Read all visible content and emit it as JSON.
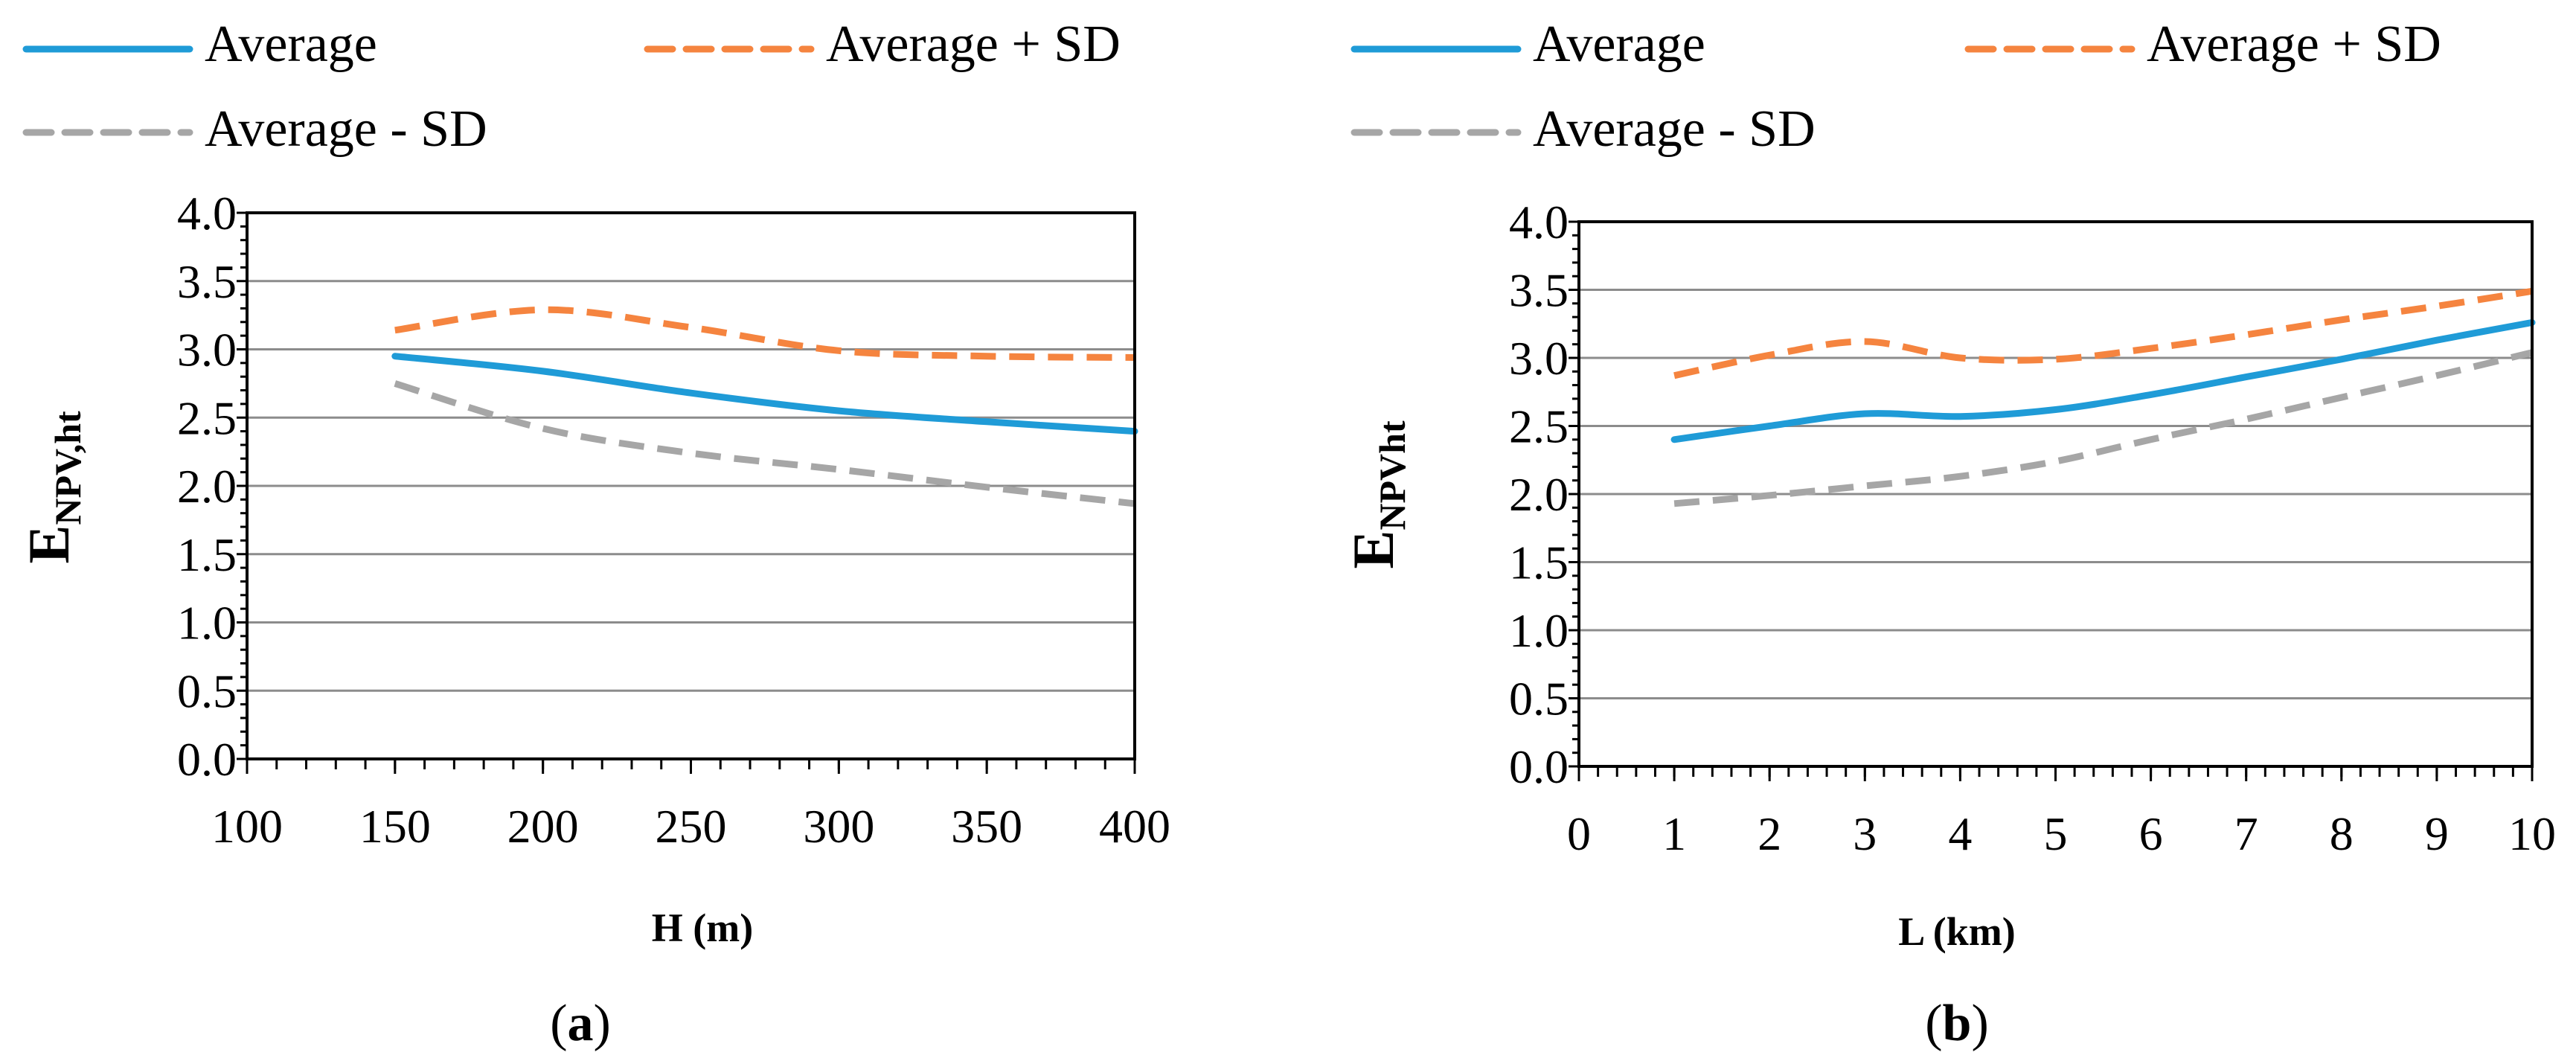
{
  "colors": {
    "average": "#1f9bd7",
    "average_plus_sd": "#f5843f",
    "average_minus_sd": "#a6a6a6",
    "grid": "#8c8c8c",
    "axis": "#000000"
  },
  "legend": {
    "average": "Average",
    "average_plus_sd": "Average  + SD",
    "average_minus_sd": "Average - SD"
  },
  "chart_data": [
    {
      "type": "line",
      "panel_label": "a",
      "xlabel": "H (m)",
      "ylabel_main": "E",
      "ylabel_sub": "NPV,ht",
      "xlim": [
        100,
        400
      ],
      "ylim": [
        0,
        4
      ],
      "xticks": [
        "100",
        "150",
        "200",
        "250",
        "300",
        "350",
        "400"
      ],
      "xtick_values": [
        100,
        150,
        200,
        250,
        300,
        350,
        400
      ],
      "yticks": [
        "0.0",
        "0.5",
        "1.0",
        "1.5",
        "2.0",
        "2.5",
        "3.0",
        "3.5",
        "4.0"
      ],
      "ytick_values": [
        0,
        0.5,
        1,
        1.5,
        2,
        2.5,
        3,
        3.5,
        4
      ],
      "x": [
        150,
        200,
        250,
        300,
        350,
        400
      ],
      "series": [
        {
          "name": "Average",
          "key": "average",
          "values": [
            2.95,
            2.84,
            2.68,
            2.55,
            2.47,
            2.4
          ]
        },
        {
          "name": "Average  + SD",
          "key": "average_plus_sd",
          "values": [
            3.14,
            3.29,
            3.16,
            2.99,
            2.95,
            2.94
          ]
        },
        {
          "name": "Average - SD",
          "key": "average_minus_sd",
          "values": [
            2.75,
            2.42,
            2.24,
            2.12,
            1.99,
            1.87
          ]
        }
      ]
    },
    {
      "type": "line",
      "panel_label": "b",
      "xlabel": "L (km)",
      "ylabel_main": "E",
      "ylabel_sub": "NPVht",
      "xlim": [
        0,
        10
      ],
      "ylim": [
        0,
        4
      ],
      "xticks": [
        "0",
        "1",
        "2",
        "3",
        "4",
        "5",
        "6",
        "7",
        "8",
        "9",
        "10"
      ],
      "xtick_values": [
        0,
        1,
        2,
        3,
        4,
        5,
        6,
        7,
        8,
        9,
        10
      ],
      "yticks": [
        "0.0",
        "0.5",
        "1.0",
        "1.5",
        "2.0",
        "2.5",
        "3.0",
        "3.5",
        "4.0"
      ],
      "ytick_values": [
        0,
        0.5,
        1,
        1.5,
        2,
        2.5,
        3,
        3.5,
        4
      ],
      "x": [
        1,
        2,
        3,
        4,
        5,
        6,
        7,
        8,
        9,
        10
      ],
      "series": [
        {
          "name": "Average",
          "key": "average",
          "values": [
            2.4,
            2.5,
            2.59,
            2.57,
            2.62,
            2.73,
            2.86,
            2.99,
            3.13,
            3.26
          ]
        },
        {
          "name": "Average  + SD",
          "key": "average_plus_sd",
          "values": [
            2.87,
            3.02,
            3.12,
            3.0,
            2.99,
            3.07,
            3.17,
            3.28,
            3.38,
            3.49
          ]
        },
        {
          "name": "Average - SD",
          "key": "average_minus_sd",
          "values": [
            1.93,
            1.99,
            2.06,
            2.13,
            2.24,
            2.4,
            2.55,
            2.71,
            2.87,
            3.04
          ]
        }
      ]
    }
  ]
}
